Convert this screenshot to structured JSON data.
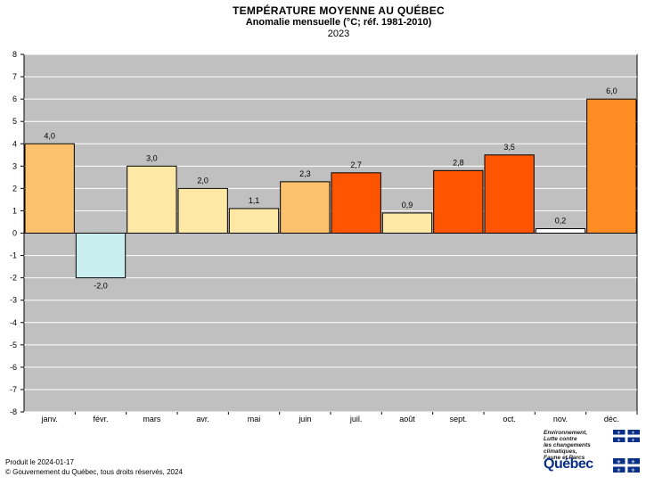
{
  "chart_data": {
    "type": "bar",
    "title": "TEMPÉRATURE  MOYENNE  AU QUÉBEC",
    "subtitle": "Anomalie mensuelle (°C; réf. 1981-2010)",
    "year": "2023",
    "categories": [
      "janv.",
      "févr.",
      "mars",
      "avr.",
      "mai",
      "juin",
      "juil.",
      "août",
      "sept.",
      "oct.",
      "nov.",
      "déc."
    ],
    "values": [
      4.0,
      -2.0,
      3.0,
      2.0,
      1.1,
      2.3,
      2.7,
      0.9,
      2.8,
      3.5,
      0.2,
      6.0
    ],
    "value_labels": [
      "4,0",
      "-2,0",
      "3,0",
      "2,0",
      "1,1",
      "2,3",
      "2,7",
      "0,9",
      "2,8",
      "3,5",
      "0,2",
      "6,0"
    ],
    "bar_colors": [
      "#fcc16c",
      "#c9eef0",
      "#fee8a6",
      "#fee8a6",
      "#fee8a6",
      "#fcc16c",
      "#ff5500",
      "#fee8a6",
      "#ff5500",
      "#ff5500",
      "#ffffff",
      "#ff8c22"
    ],
    "ylim": [
      -8,
      8
    ],
    "yticks": [
      "8",
      "7",
      "6",
      "5",
      "4",
      "3",
      "2",
      "1",
      "0",
      "-1",
      "-2",
      "-3",
      "-4",
      "-5",
      "-6",
      "-7",
      "-8"
    ],
    "plot_background": "#c0c0c0",
    "grid": true,
    "xlabel": "",
    "ylabel": ""
  },
  "footer": {
    "produced": "Produit le 2024-01-17",
    "copyright": "© Gouvernement du Québec, tous droits réservés, 2024"
  },
  "logo": {
    "ministry_lines": [
      "Environnement,",
      "Lutte contre",
      "les changements",
      "climatiques,",
      "Faune et Parcs"
    ],
    "wordmark": "Québec",
    "brand_color": "#0a2f87"
  }
}
